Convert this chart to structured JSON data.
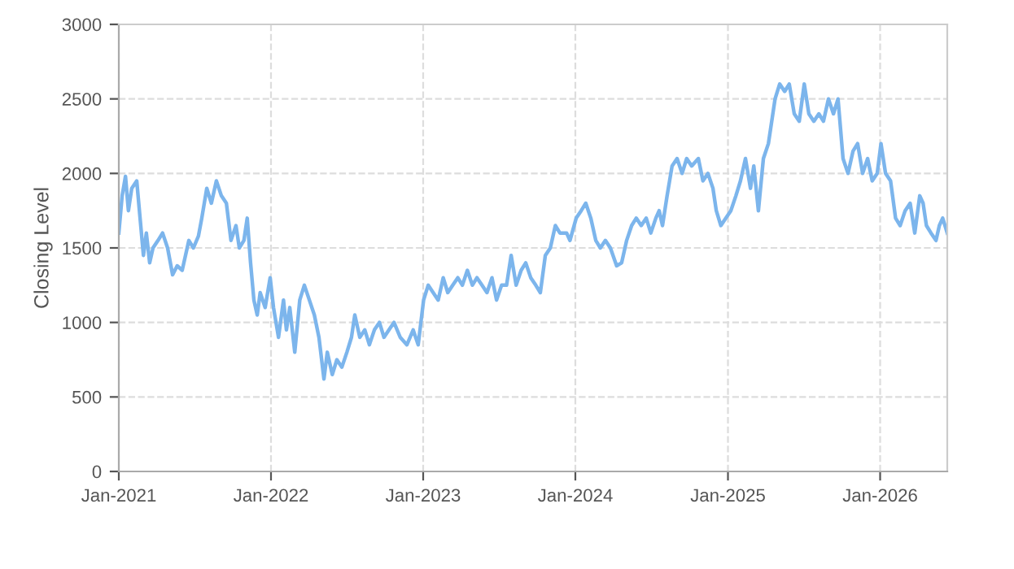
{
  "chart_data": {
    "type": "line",
    "ylabel": "Closing Level",
    "x": [
      "2021-01-01",
      "2021-01-09",
      "2021-01-17",
      "2021-01-24",
      "2021-02-01",
      "2021-02-13",
      "2021-02-21",
      "2021-03-01",
      "2021-03-08",
      "2021-03-16",
      "2021-03-24",
      "2021-04-05",
      "2021-04-16",
      "2021-04-28",
      "2021-05-10",
      "2021-05-21",
      "2021-06-02",
      "2021-06-18",
      "2021-06-29",
      "2021-07-11",
      "2021-07-19",
      "2021-07-31",
      "2021-08-11",
      "2021-08-23",
      "2021-09-04",
      "2021-09-16",
      "2021-09-27",
      "2021-10-09",
      "2021-10-17",
      "2021-10-28",
      "2021-11-05",
      "2021-11-13",
      "2021-11-21",
      "2021-11-29",
      "2021-12-06",
      "2021-12-18",
      "2021-12-30",
      "2022-01-07",
      "2022-01-19",
      "2022-01-31",
      "2022-02-07",
      "2022-02-15",
      "2022-02-27",
      "2022-03-11",
      "2022-03-22",
      "2022-04-03",
      "2022-04-15",
      "2022-04-26",
      "2022-05-08",
      "2022-05-16",
      "2022-05-28",
      "2022-06-08",
      "2022-06-20",
      "2022-07-02",
      "2022-07-13",
      "2022-07-21",
      "2022-08-02",
      "2022-08-14",
      "2022-08-25",
      "2022-09-06",
      "2022-09-18",
      "2022-09-29",
      "2022-10-11",
      "2022-10-23",
      "2022-11-07",
      "2022-11-23",
      "2022-12-08",
      "2022-12-20",
      "2023-01-02",
      "2023-01-13",
      "2023-01-25",
      "2023-02-06",
      "2023-02-18",
      "2023-03-01",
      "2023-03-13",
      "2023-03-25",
      "2023-04-05",
      "2023-04-17",
      "2023-04-29",
      "2023-05-10",
      "2023-05-22",
      "2023-06-03",
      "2023-06-15",
      "2023-06-26",
      "2023-07-08",
      "2023-07-20",
      "2023-07-31",
      "2023-08-12",
      "2023-08-24",
      "2023-09-04",
      "2023-09-16",
      "2023-09-28",
      "2023-10-09",
      "2023-10-21",
      "2023-11-02",
      "2023-11-14",
      "2023-11-25",
      "2023-12-11",
      "2023-12-19",
      "2024-01-03",
      "2024-01-15",
      "2024-01-26",
      "2024-02-07",
      "2024-02-19",
      "2024-03-01",
      "2024-03-13",
      "2024-03-25",
      "2024-04-09",
      "2024-04-21",
      "2024-05-03",
      "2024-05-15",
      "2024-05-26",
      "2024-06-07",
      "2024-06-19",
      "2024-06-30",
      "2024-07-12",
      "2024-07-20",
      "2024-07-28",
      "2024-08-08",
      "2024-08-20",
      "2024-09-01",
      "2024-09-13",
      "2024-09-24",
      "2024-10-06",
      "2024-10-22",
      "2024-11-02",
      "2024-11-14",
      "2024-11-26",
      "2024-12-04",
      "2024-12-15",
      "2024-12-27",
      "2025-01-08",
      "2025-01-20",
      "2025-01-31",
      "2025-02-12",
      "2025-02-24",
      "2025-03-04",
      "2025-03-15",
      "2025-03-27",
      "2025-04-08",
      "2025-04-24",
      "2025-05-05",
      "2025-05-17",
      "2025-05-28",
      "2025-06-09",
      "2025-06-21",
      "2025-07-03",
      "2025-07-14",
      "2025-07-26",
      "2025-08-07",
      "2025-08-18",
      "2025-08-30",
      "2025-09-11",
      "2025-09-22",
      "2025-10-04",
      "2025-10-16",
      "2025-10-28",
      "2025-11-08",
      "2025-11-20",
      "2025-12-02",
      "2025-12-13",
      "2025-12-25",
      "2026-01-03",
      "2026-01-14",
      "2026-01-26",
      "2026-02-07",
      "2026-02-18",
      "2026-03-02",
      "2026-03-14",
      "2026-03-25",
      "2026-04-06",
      "2026-04-14",
      "2026-04-22",
      "2026-05-03",
      "2026-05-15",
      "2026-05-23",
      "2026-05-31",
      "2026-06-11"
    ],
    "series": [
      {
        "color": "#7cb5ec",
        "values": [
          1600,
          1850,
          1980,
          1750,
          1900,
          1950,
          1700,
          1450,
          1600,
          1400,
          1500,
          1550,
          1600,
          1500,
          1320,
          1380,
          1350,
          1550,
          1500,
          1580,
          1700,
          1900,
          1800,
          1950,
          1850,
          1800,
          1550,
          1650,
          1500,
          1550,
          1700,
          1400,
          1150,
          1050,
          1200,
          1100,
          1300,
          1100,
          900,
          1150,
          950,
          1100,
          800,
          1150,
          1250,
          1150,
          1050,
          900,
          620,
          800,
          650,
          750,
          700,
          800,
          900,
          1050,
          900,
          950,
          850,
          950,
          1000,
          900,
          950,
          1000,
          900,
          850,
          950,
          850,
          1150,
          1250,
          1200,
          1150,
          1300,
          1200,
          1250,
          1300,
          1250,
          1350,
          1250,
          1300,
          1250,
          1200,
          1300,
          1150,
          1250,
          1250,
          1450,
          1250,
          1350,
          1400,
          1300,
          1250,
          1200,
          1450,
          1500,
          1650,
          1600,
          1600,
          1550,
          1700,
          1750,
          1800,
          1700,
          1550,
          1500,
          1550,
          1500,
          1380,
          1400,
          1550,
          1650,
          1700,
          1650,
          1700,
          1600,
          1700,
          1750,
          1650,
          1850,
          2050,
          2100,
          2000,
          2100,
          2050,
          2100,
          1950,
          2000,
          1900,
          1750,
          1650,
          1700,
          1750,
          1850,
          1950,
          2100,
          1900,
          2050,
          1750,
          2100,
          2200,
          2500,
          2600,
          2550,
          2600,
          2400,
          2350,
          2600,
          2400,
          2350,
          2400,
          2350,
          2500,
          2400,
          2500,
          2100,
          2000,
          2150,
          2200,
          2000,
          2100,
          1950,
          2000,
          2200,
          2000,
          1950,
          1700,
          1650,
          1750,
          1800,
          1600,
          1850,
          1800,
          1650,
          1600,
          1550,
          1650,
          1700,
          1600
        ]
      }
    ],
    "xlim": [
      "2021-01-01",
      "2026-06-11"
    ],
    "xticks": [
      {
        "value": "2021-01-01",
        "label": "Jan-2021"
      },
      {
        "value": "2022-01-01",
        "label": "Jan-2022"
      },
      {
        "value": "2023-01-01",
        "label": "Jan-2023"
      },
      {
        "value": "2024-01-01",
        "label": "Jan-2024"
      },
      {
        "value": "2025-01-01",
        "label": "Jan-2025"
      },
      {
        "value": "2026-01-01",
        "label": "Jan-2026"
      }
    ],
    "ylim": [
      0,
      3000
    ],
    "yticks": [
      0,
      500,
      1000,
      1500,
      2000,
      2500,
      3000
    ],
    "grid": true,
    "line_style": "solid",
    "marker": "none"
  }
}
